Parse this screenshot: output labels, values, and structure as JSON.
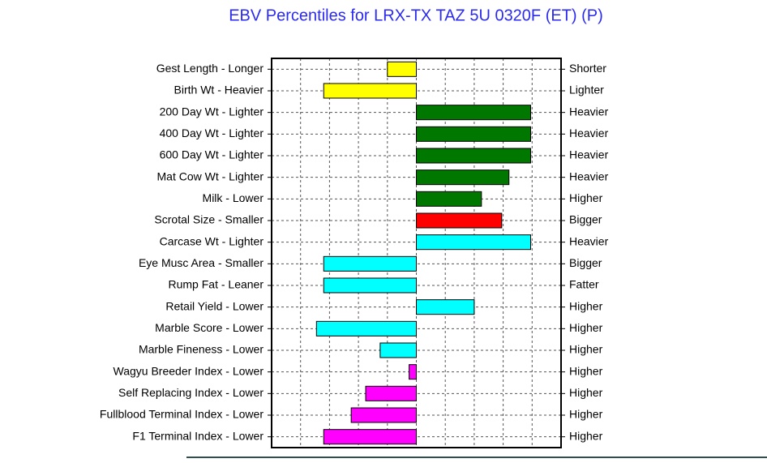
{
  "chart_data": {
    "type": "bar",
    "orientation": "horizontal",
    "title": "EBV Percentiles for LRX-TX TAZ 5U 0320F (ET) (P)",
    "categories": [
      "Gest Length - Longer",
      "Birth Wt - Heavier",
      "200 Day Wt - Lighter",
      "400 Day Wt - Lighter",
      "600 Day Wt - Lighter",
      "Mat Cow Wt - Lighter",
      "Milk - Lower",
      "Scrotal Size - Smaller",
      "Carcase Wt - Lighter",
      "Eye Musc Area - Smaller",
      "Rump Fat - Leaner",
      "Retail Yield - Lower",
      "Marble Score - Lower",
      "Marble Fineness - Lower",
      "Wagyu Breeder Index - Lower",
      "Self Replacing Index - Lower",
      "Fullblood Terminal Index - Lower",
      "F1 Terminal Index - Lower"
    ],
    "right_labels": [
      "Shorter",
      "Lighter",
      "Heavier",
      "Heavier",
      "Heavier",
      "Heavier",
      "Higher",
      "Bigger",
      "Heavier",
      "Bigger",
      "Fatter",
      "Higher",
      "Higher",
      "Higher",
      "Higher",
      "Higher",
      "Higher",
      "Higher"
    ],
    "values": [
      -20,
      -64,
      79,
      79,
      79,
      64,
      45,
      59,
      79,
      -64,
      -64,
      40,
      -69,
      -25,
      -5,
      -35,
      -45,
      -64
    ],
    "colors": [
      "#ffff00",
      "#ffff00",
      "#007800",
      "#007800",
      "#007800",
      "#007800",
      "#007800",
      "#ff0000",
      "#00ffff",
      "#00ffff",
      "#00ffff",
      "#00ffff",
      "#00ffff",
      "#00ffff",
      "#ff00ff",
      "#ff00ff",
      "#ff00ff",
      "#ff00ff"
    ],
    "xlim": [
      -100,
      100
    ],
    "xticks": [
      -100,
      -80,
      -60,
      -40,
      -20,
      0,
      20,
      40,
      60,
      80,
      100
    ],
    "grid": true
  }
}
